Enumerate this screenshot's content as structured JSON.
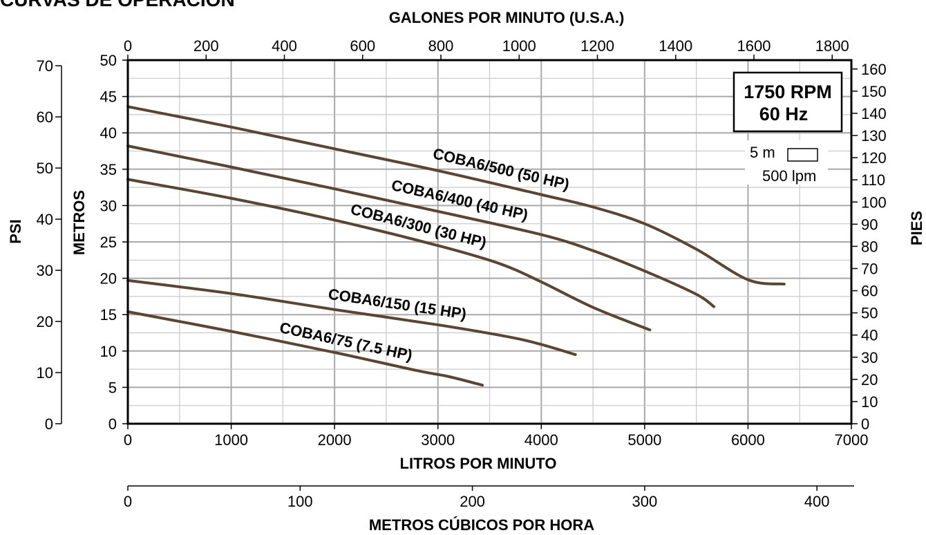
{
  "page_title": "CURVAS DE OPERACIÓN",
  "chart_data": {
    "type": "line",
    "title": "CURVAS DE OPERACIÓN",
    "x_axes": {
      "bottom": {
        "label": "LITROS POR MINUTO",
        "range": [
          0,
          7000
        ],
        "ticks": [
          0,
          1000,
          2000,
          3000,
          4000,
          5000,
          6000,
          7000
        ]
      },
      "top": {
        "label": "GALONES POR MINUTO (U.S.A.)",
        "range": [
          0,
          1849
        ],
        "ticks": [
          0,
          200,
          400,
          600,
          800,
          1000,
          1200,
          1400,
          1600,
          1800
        ]
      },
      "lower": {
        "label": "METROS CÚBICOS POR HORA",
        "range": [
          0,
          420
        ],
        "ticks": [
          0,
          100,
          200,
          300,
          400
        ]
      }
    },
    "y_axes": {
      "left_metros": {
        "label": "METROS",
        "range": [
          0,
          50
        ],
        "ticks": [
          0,
          5,
          10,
          15,
          20,
          25,
          30,
          35,
          40,
          45,
          50
        ]
      },
      "left_psi": {
        "label": "PSI",
        "range": [
          0,
          71.1
        ],
        "ticks": [
          0,
          10,
          20,
          30,
          40,
          50,
          60,
          70
        ]
      },
      "right_pies": {
        "label": "PIES",
        "range": [
          0,
          164
        ],
        "ticks": [
          0,
          10,
          20,
          30,
          40,
          50,
          60,
          70,
          80,
          90,
          100,
          110,
          120,
          130,
          140,
          150,
          160
        ]
      }
    },
    "grid": true,
    "series": [
      {
        "name": "COBA6/500 (50 HP)",
        "x": [
          0,
          1000,
          2000,
          3000,
          4000,
          4500,
          5000,
          5500,
          6000,
          6350
        ],
        "y": [
          43.6,
          40.8,
          37.8,
          34.8,
          31.5,
          29.8,
          27.5,
          24.0,
          19.8,
          19.2
        ]
      },
      {
        "name": "COBA6/400 (40 HP)",
        "x": [
          0,
          1000,
          2000,
          3000,
          4000,
          4500,
          5000,
          5500,
          5670
        ],
        "y": [
          38.2,
          35.3,
          32.3,
          29.2,
          26.0,
          23.8,
          21.0,
          17.8,
          16.1
        ]
      },
      {
        "name": "COBA6/300 (30 HP)",
        "x": [
          0,
          1000,
          2000,
          3000,
          3600,
          4000,
          4500,
          5050
        ],
        "y": [
          33.6,
          31.0,
          28.0,
          24.5,
          22.0,
          19.5,
          16.0,
          12.9
        ]
      },
      {
        "name": "COBA6/150 (15 HP)",
        "x": [
          0,
          1000,
          2000,
          3000,
          3700,
          4000,
          4330
        ],
        "y": [
          19.7,
          17.9,
          15.7,
          13.6,
          11.9,
          10.9,
          9.5
        ]
      },
      {
        "name": "COBA6/75 (7.5 HP)",
        "x": [
          0,
          1000,
          2000,
          2800,
          3100,
          3430
        ],
        "y": [
          15.4,
          12.7,
          9.8,
          7.3,
          6.5,
          5.3
        ]
      }
    ],
    "line_color": "#5b4530",
    "annotations": {
      "speed": "1750 RPM",
      "frequency": "60 Hz",
      "scale_height": "5 m",
      "scale_flow": "500 lpm"
    }
  }
}
